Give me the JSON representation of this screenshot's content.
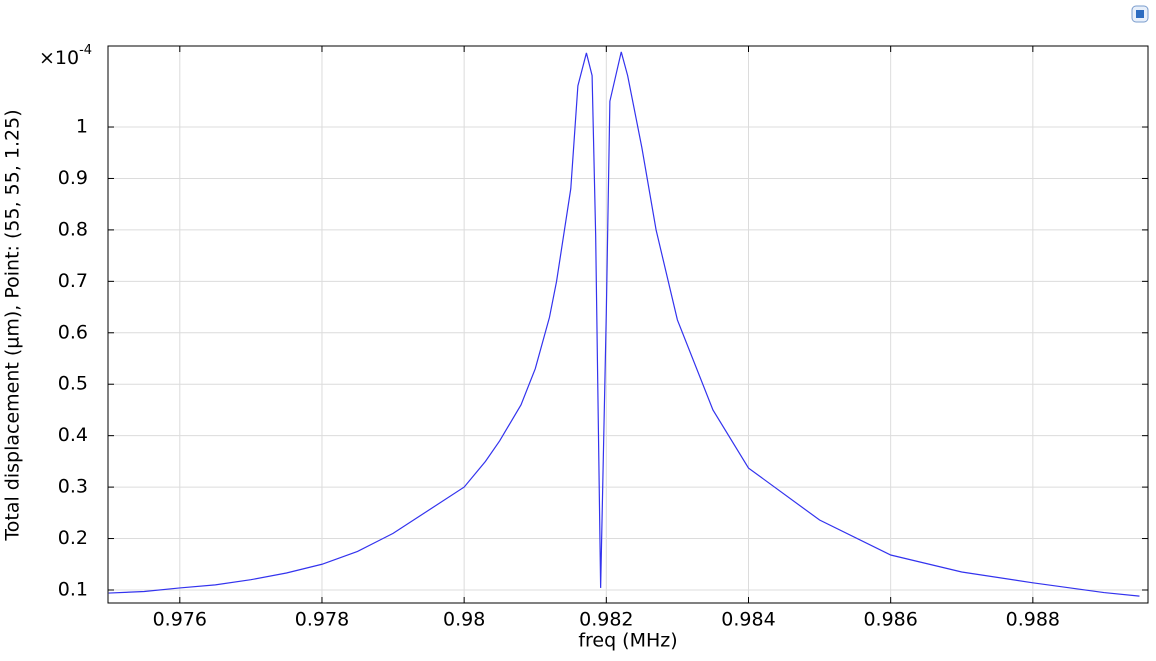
{
  "chart_data": {
    "type": "line",
    "x_label": "freq (MHz)",
    "y_label": "Total displacement (µm), Point: (55, 55, 1.25)",
    "y_multiplier": {
      "base": "×10",
      "exponent": "-4"
    },
    "x": [
      0.975,
      0.9755,
      0.976,
      0.9765,
      0.977,
      0.9775,
      0.978,
      0.9785,
      0.979,
      0.9795,
      0.98,
      0.9803,
      0.9805,
      0.9808,
      0.981,
      0.9812,
      0.9813,
      0.9815,
      0.9816,
      0.98172,
      0.9818,
      0.98185,
      0.98192,
      0.982,
      0.98205,
      0.98221,
      0.9823,
      0.9825,
      0.9827,
      0.983,
      0.9835,
      0.984,
      0.985,
      0.986,
      0.987,
      0.988,
      0.989,
      0.9895
    ],
    "series": [
      {
        "color": "#3333ee",
        "values": [
          0.094,
          0.097,
          0.104,
          0.11,
          0.12,
          0.133,
          0.15,
          0.175,
          0.21,
          0.255,
          0.3,
          0.35,
          0.39,
          0.46,
          0.53,
          0.63,
          0.7,
          0.88,
          1.08,
          1.144,
          1.1,
          0.79,
          0.104,
          0.64,
          1.05,
          1.146,
          1.1,
          0.96,
          0.8,
          0.625,
          0.45,
          0.337,
          0.236,
          0.168,
          0.135,
          0.114,
          0.095,
          0.088
        ]
      }
    ],
    "xlim": [
      0.97499,
      0.98962
    ],
    "ylim": [
      0.0747,
      1.1575
    ],
    "xticks": [
      0.976,
      0.978,
      0.98,
      0.982,
      0.984,
      0.986,
      0.988
    ],
    "yticks": [
      0.1,
      0.2,
      0.3,
      0.4,
      0.5,
      0.6,
      0.7,
      0.8,
      0.9,
      1
    ],
    "grid": true
  }
}
